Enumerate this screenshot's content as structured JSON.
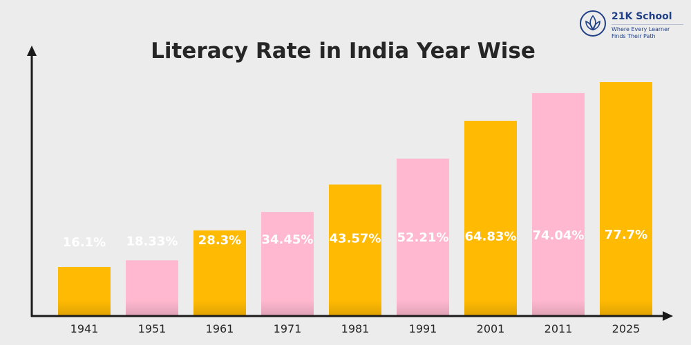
{
  "brand": {
    "name": "21K School",
    "tagline_line1": "Where Every Learner",
    "tagline_line2": "Finds Their Path",
    "color": "#1f3f86"
  },
  "chart_data": {
    "type": "bar",
    "title": "Literacy Rate in India Year Wise",
    "xlabel": "",
    "ylabel": "",
    "categories": [
      "1941",
      "1951",
      "1961",
      "1971",
      "1981",
      "1991",
      "2001",
      "2011",
      "2025"
    ],
    "values": [
      16.1,
      18.33,
      28.3,
      34.45,
      43.57,
      52.21,
      64.83,
      74.04,
      77.7
    ],
    "value_labels": [
      "16.1%",
      "18.33%",
      "28.3%",
      "34.45%",
      "43.57%",
      "52.21%",
      "64.83%",
      "74.04%",
      "77.7%"
    ],
    "bar_colors": [
      "#ffba03",
      "#ffb8cf",
      "#ffba03",
      "#ffb8cf",
      "#ffba03",
      "#ffb8cf",
      "#ffba03",
      "#ffb8cf",
      "#ffba03"
    ],
    "axis_color": "#1a1a1a",
    "grid": false,
    "legend": "none"
  }
}
